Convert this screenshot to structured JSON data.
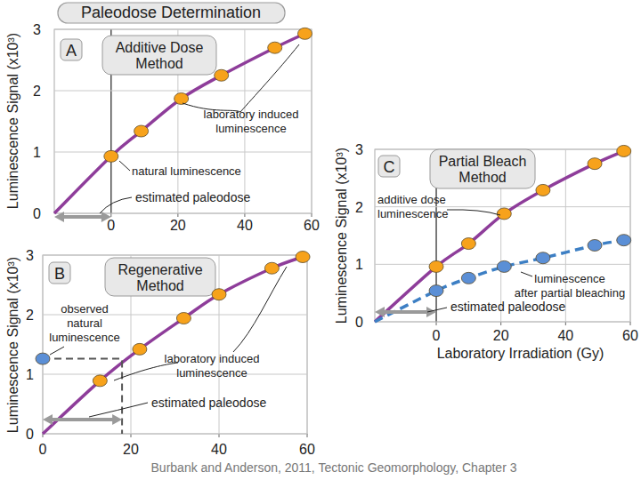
{
  "title": "Paleodose Determination",
  "source": "Burbank and Anderson, 2011, Tectonic Geomorphology, Chapter 3",
  "chart_data": [
    {
      "type": "line",
      "panel": "A",
      "title": "Additive Dose\nMethod",
      "ylabel": "Luminescence Signal (x10³)",
      "xlim": [
        -17,
        60
      ],
      "ylim": [
        0,
        3
      ],
      "xticks": [
        0,
        20,
        40,
        60
      ],
      "yticks": [
        0,
        1,
        2,
        3
      ],
      "grid": true,
      "series": [
        {
          "name": "laboratory induced\nluminescence",
          "type": "scatter",
          "marker": "circle",
          "color": "#f7a21b",
          "x": [
            9,
            21,
            33,
            49,
            58
          ],
          "values": [
            1.34,
            1.87,
            2.25,
            2.7,
            2.93
          ]
        },
        {
          "name": "natural luminescence",
          "type": "scatter",
          "marker": "circle",
          "color": "#f7a21b",
          "x": [
            0
          ],
          "values": [
            0.93
          ]
        }
      ],
      "curves": [
        {
          "color": "#8e3d9a",
          "line_style": "solid",
          "x": [
            -17,
            0,
            9,
            21,
            33,
            49,
            58
          ],
          "values": [
            0,
            0.93,
            1.34,
            1.87,
            2.25,
            2.7,
            2.93
          ]
        }
      ],
      "paleodose": {
        "label": "estimated paleodose",
        "from": -17,
        "to": 0
      }
    },
    {
      "type": "line",
      "panel": "B",
      "title": "Regenerative\nMethod",
      "ylabel": "Luminescence Signal (x10³)",
      "xlim": [
        0,
        60
      ],
      "ylim": [
        0,
        3
      ],
      "xticks": [
        0,
        20,
        40,
        60
      ],
      "yticks": [
        0,
        1,
        2,
        3
      ],
      "grid": true,
      "series": [
        {
          "name": "observed\nnatural\nluminescence",
          "type": "scatter",
          "marker": "circle",
          "color": "#5b8fd6",
          "x": [
            0
          ],
          "values": [
            1.26
          ]
        },
        {
          "name": "laboratory induced\nluminescence",
          "type": "scatter",
          "marker": "circle",
          "color": "#f7a21b",
          "x": [
            13,
            22,
            32,
            40,
            52,
            59
          ],
          "values": [
            0.89,
            1.42,
            1.94,
            2.34,
            2.78,
            2.97
          ]
        }
      ],
      "curves": [
        {
          "color": "#8e3d9a",
          "line_style": "solid",
          "x": [
            0,
            13,
            22,
            32,
            40,
            52,
            59
          ],
          "values": [
            0,
            0.89,
            1.42,
            1.94,
            2.34,
            2.78,
            2.97
          ]
        }
      ],
      "paleodose": {
        "label": "estimated paleodose",
        "from": 0,
        "to": 18
      }
    },
    {
      "type": "line",
      "panel": "C",
      "title": "Partial Bleach\nMethod",
      "ylabel": "Luminescence Signal (x10³)",
      "xlabel": "Laboratory Irradiation (Gy)",
      "xlim": [
        -19,
        60
      ],
      "ylim": [
        0,
        3
      ],
      "xticks": [
        0,
        20,
        40,
        60
      ],
      "yticks": [
        0,
        1,
        2,
        3
      ],
      "grid": true,
      "series": [
        {
          "name": "additive dose\nluminescence",
          "type": "scatter",
          "marker": "circle",
          "color": "#f7a21b",
          "x": [
            0,
            10,
            21,
            33,
            49,
            58
          ],
          "values": [
            0.96,
            1.36,
            1.88,
            2.29,
            2.75,
            2.97
          ]
        },
        {
          "name": "luminescence\nafter partial bleaching",
          "type": "scatter",
          "marker": "circle",
          "color": "#5b8fd6",
          "x": [
            0,
            10,
            21,
            33,
            49,
            58
          ],
          "values": [
            0.54,
            0.76,
            0.96,
            1.11,
            1.33,
            1.42
          ]
        }
      ],
      "curves": [
        {
          "color": "#8e3d9a",
          "line_style": "solid",
          "x": [
            -19,
            0,
            10,
            21,
            33,
            49,
            58
          ],
          "values": [
            0,
            0.96,
            1.36,
            1.88,
            2.29,
            2.75,
            2.97
          ]
        },
        {
          "color": "#3d7fc4",
          "line_style": "dashed",
          "x": [
            -19,
            0,
            10,
            21,
            33,
            49,
            58
          ],
          "values": [
            0,
            0.54,
            0.76,
            0.96,
            1.11,
            1.33,
            1.42
          ]
        }
      ],
      "paleodose": {
        "label": "estimated paleodose",
        "from": -19,
        "to": 0
      }
    }
  ]
}
